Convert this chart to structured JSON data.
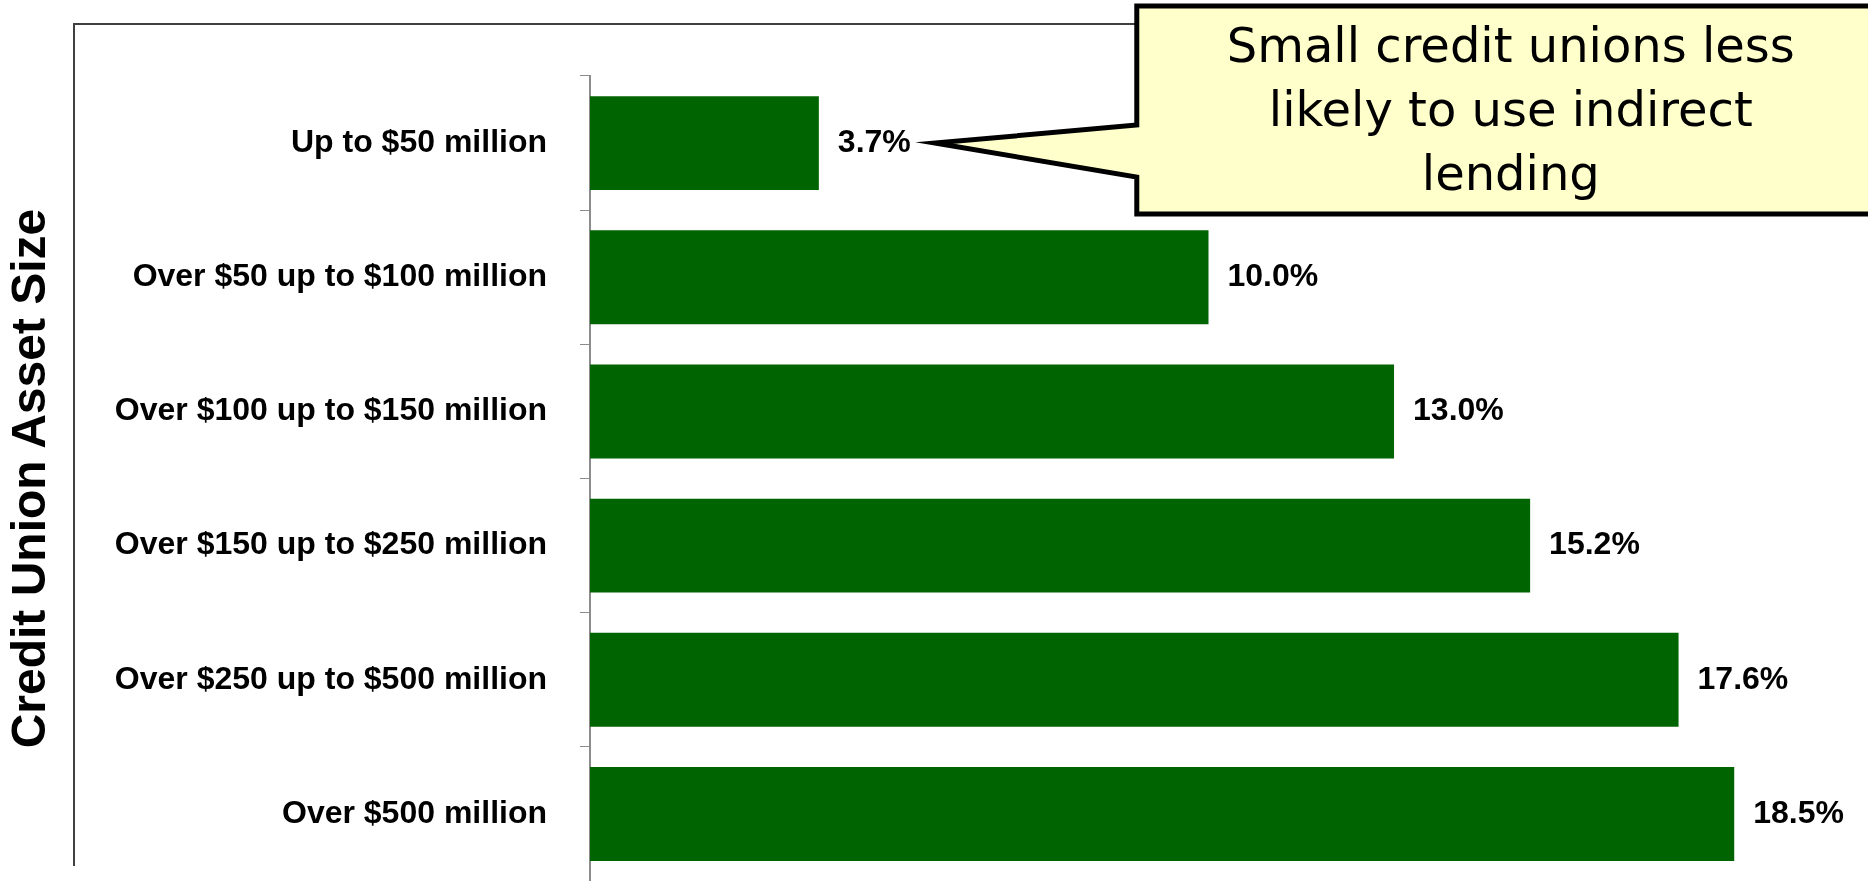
{
  "chart_data": {
    "type": "bar",
    "orientation": "horizontal",
    "ylabel": "Credit Union Asset Size",
    "categories": [
      "Up to $50 million",
      "Over $50 up to $100 million",
      "Over $100 up to $150 million",
      "Over $150 up to $250 million",
      "Over $250 up to $500 million",
      "Over $500 million"
    ],
    "values": [
      3.7,
      10.0,
      13.0,
      15.2,
      17.6,
      18.5
    ],
    "value_labels": [
      "3.7%",
      "10.0%",
      "13.0%",
      "15.2%",
      "17.6%",
      "18.5%"
    ],
    "color": "#006400",
    "tick_labels": "y",
    "annotations": [
      "Small credit unions less likely to use indirect lending"
    ]
  }
}
